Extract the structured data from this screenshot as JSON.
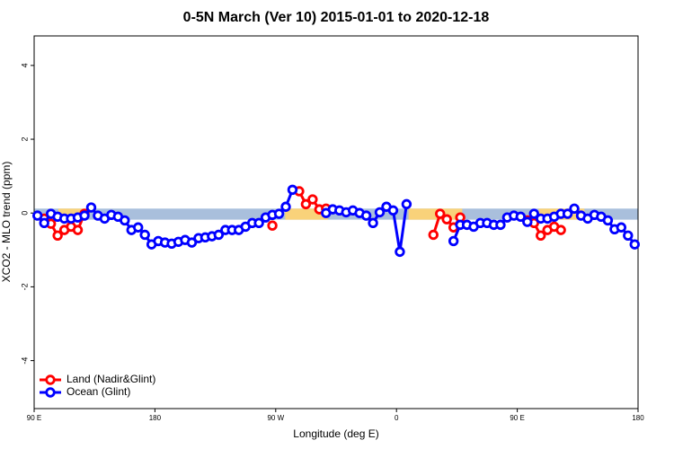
{
  "chart_data": {
    "type": "line",
    "title": "0-5N March (Ver 10)   2015-01-01 to 2020-12-18",
    "xlabel": "Longitude (deg E)",
    "ylabel": "XCO2 - MLO trend (ppm)",
    "x": [
      92.5,
      97.5,
      102.5,
      107.5,
      112.5,
      117.5,
      122.5,
      127.5,
      132.5,
      137.5,
      142.5,
      147.5,
      152.5,
      157.5,
      162.5,
      167.5,
      172.5,
      177.5,
      182.5,
      187.5,
      192.5,
      197.5,
      202.5,
      207.5,
      212.5,
      217.5,
      222.5,
      227.5,
      232.5,
      237.5,
      242.5,
      247.5,
      252.5,
      257.5,
      262.5,
      267.5,
      272.5,
      277.5,
      282.5,
      287.5,
      292.5,
      297.5,
      302.5,
      307.5,
      312.5,
      317.5,
      322.5,
      327.5,
      332.5,
      337.5,
      342.5,
      347.5,
      352.5,
      357.5,
      362.5,
      367.5,
      372.5,
      377.5,
      382.5,
      387.5,
      392.5,
      397.5,
      402.5,
      407.5,
      412.5,
      417.5,
      422.5,
      427.5,
      432.5,
      437.5,
      442.5,
      447.5,
      452.5,
      457.5,
      462.5,
      467.5,
      472.5,
      477.5,
      482.5,
      487.5,
      492.5,
      497.5,
      502.5,
      507.5,
      512.5,
      517.5,
      522.5,
      527.5,
      532.5,
      537.5
    ],
    "series": [
      {
        "name": "Land (Nadir&Glint)",
        "color": "#ff0000",
        "values": [
          null,
          -0.15,
          -0.29,
          -0.61,
          -0.46,
          -0.37,
          -0.46,
          -0.02,
          null,
          null,
          null,
          null,
          null,
          null,
          null,
          null,
          null,
          null,
          null,
          null,
          null,
          null,
          null,
          null,
          null,
          null,
          null,
          null,
          null,
          null,
          null,
          null,
          null,
          null,
          null,
          -0.34,
          null,
          null,
          null,
          0.59,
          0.24,
          0.37,
          0.1,
          0.12,
          null,
          null,
          null,
          null,
          null,
          null,
          null,
          null,
          null,
          null,
          null,
          null,
          null,
          null,
          null,
          -0.59,
          -0.02,
          -0.17,
          -0.39,
          -0.12,
          null,
          null,
          null,
          null,
          null,
          null,
          null,
          null,
          null,
          -0.2,
          -0.27,
          -0.61,
          -0.46,
          -0.37,
          -0.46,
          null,
          null,
          null,
          null,
          null,
          null,
          null,
          null,
          null,
          null,
          null
        ]
      },
      {
        "name": "Ocean (Glint)",
        "color": "#0000ff",
        "values": [
          -0.07,
          -0.27,
          -0.02,
          -0.1,
          -0.15,
          -0.15,
          -0.12,
          -0.07,
          0.15,
          -0.07,
          -0.15,
          -0.05,
          -0.1,
          -0.2,
          -0.46,
          -0.39,
          -0.59,
          -0.85,
          -0.76,
          -0.8,
          -0.83,
          -0.78,
          -0.73,
          -0.8,
          -0.68,
          -0.66,
          -0.63,
          -0.59,
          -0.46,
          -0.46,
          -0.46,
          -0.37,
          -0.27,
          -0.27,
          -0.12,
          -0.05,
          -0.02,
          0.17,
          0.63,
          null,
          null,
          null,
          null,
          0,
          0.1,
          0.07,
          0.02,
          0.07,
          0,
          -0.07,
          -0.27,
          0.02,
          0.17,
          0.07,
          -1.05,
          0.24,
          null,
          null,
          null,
          null,
          null,
          null,
          -0.76,
          -0.32,
          -0.32,
          -0.37,
          -0.27,
          -0.27,
          -0.32,
          -0.32,
          -0.12,
          -0.07,
          -0.1,
          -0.24,
          -0.02,
          -0.15,
          -0.15,
          -0.1,
          -0.02,
          -0.02,
          0.12,
          -0.07,
          -0.15,
          -0.05,
          -0.1,
          -0.2,
          -0.44,
          -0.39,
          -0.61,
          -0.85
        ]
      }
    ],
    "band": {
      "ylim": [
        -0.18,
        0.12
      ],
      "color": "#a9bfdc",
      "land_color": "#f9d27a",
      "land_xlim": [
        [
          108,
          130
        ],
        [
          277,
          309
        ],
        [
          369,
          409
        ],
        [
          466,
          500
        ]
      ]
    },
    "xlim": [
      90,
      540
    ],
    "xticks": [
      {
        "value": 90,
        "label": "90 E"
      },
      180,
      {
        "value": 270,
        "label": "90 W"
      },
      {
        "value": 360,
        "label": "0"
      },
      {
        "value": 450,
        "label": "90 E"
      },
      {
        "value": 540,
        "label": "180"
      }
    ],
    "ylim": [
      -5.3,
      4.8
    ],
    "yticks": [
      -4,
      -2,
      0,
      2,
      4
    ],
    "legend": "bottom-left"
  }
}
